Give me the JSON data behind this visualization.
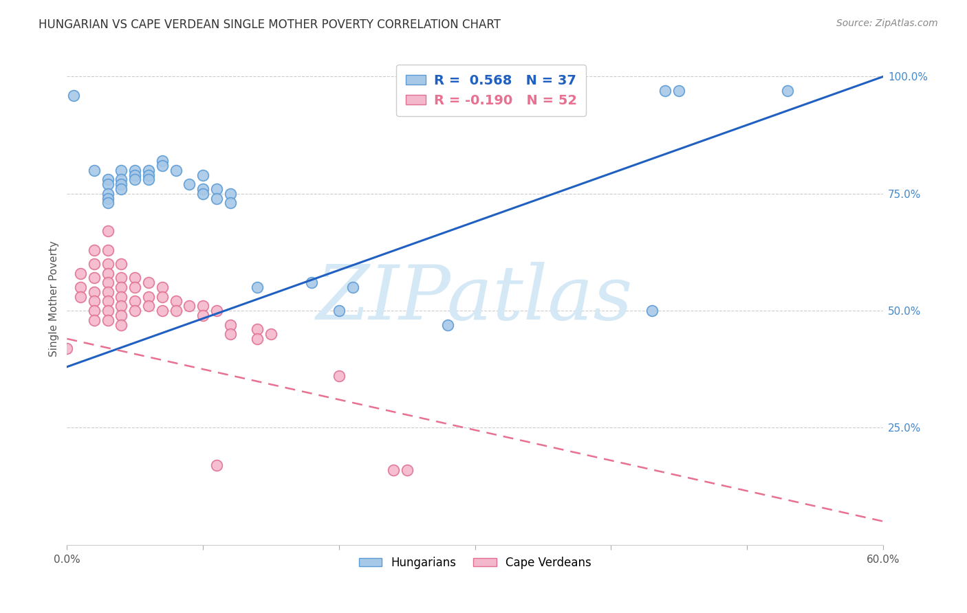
{
  "title": "HUNGARIAN VS CAPE VERDEAN SINGLE MOTHER POVERTY CORRELATION CHART",
  "source": "Source: ZipAtlas.com",
  "ylabel": "Single Mother Poverty",
  "xlim": [
    0.0,
    0.6
  ],
  "ylim": [
    0.0,
    1.05
  ],
  "x_ticks": [
    0.0,
    0.1,
    0.2,
    0.3,
    0.4,
    0.5,
    0.6
  ],
  "x_tick_labels": [
    "0.0%",
    "",
    "",
    "",
    "",
    "",
    "60.0%"
  ],
  "y_ticks_right": [
    0.25,
    0.5,
    0.75,
    1.0
  ],
  "y_tick_labels_right": [
    "25.0%",
    "50.0%",
    "75.0%",
    "100.0%"
  ],
  "hungarian_color": "#a8c8e8",
  "capeverdean_color": "#f4b8cc",
  "hungarian_edge_color": "#5b9bd5",
  "capeverdean_edge_color": "#e07090",
  "hungarian_line_color": "#2060c0",
  "capeverdean_line_color": "#e87090",
  "watermark": "ZIPatlas",
  "watermark_color": "#d5e8f5",
  "background_color": "#ffffff",
  "hungarian_points": [
    [
      0.005,
      0.96
    ],
    [
      0.02,
      0.8
    ],
    [
      0.03,
      0.78
    ],
    [
      0.03,
      0.77
    ],
    [
      0.03,
      0.75
    ],
    [
      0.03,
      0.74
    ],
    [
      0.03,
      0.73
    ],
    [
      0.04,
      0.8
    ],
    [
      0.04,
      0.78
    ],
    [
      0.04,
      0.77
    ],
    [
      0.04,
      0.76
    ],
    [
      0.05,
      0.8
    ],
    [
      0.05,
      0.79
    ],
    [
      0.05,
      0.78
    ],
    [
      0.06,
      0.8
    ],
    [
      0.06,
      0.79
    ],
    [
      0.06,
      0.78
    ],
    [
      0.07,
      0.82
    ],
    [
      0.07,
      0.81
    ],
    [
      0.08,
      0.8
    ],
    [
      0.09,
      0.77
    ],
    [
      0.1,
      0.79
    ],
    [
      0.1,
      0.76
    ],
    [
      0.1,
      0.75
    ],
    [
      0.11,
      0.76
    ],
    [
      0.11,
      0.74
    ],
    [
      0.12,
      0.75
    ],
    [
      0.12,
      0.73
    ],
    [
      0.14,
      0.55
    ],
    [
      0.18,
      0.56
    ],
    [
      0.2,
      0.5
    ],
    [
      0.21,
      0.55
    ],
    [
      0.28,
      0.47
    ],
    [
      0.43,
      0.5
    ],
    [
      0.44,
      0.97
    ],
    [
      0.45,
      0.97
    ],
    [
      0.53,
      0.97
    ]
  ],
  "capeverdean_points": [
    [
      0.0,
      0.42
    ],
    [
      0.01,
      0.58
    ],
    [
      0.01,
      0.55
    ],
    [
      0.01,
      0.53
    ],
    [
      0.02,
      0.63
    ],
    [
      0.02,
      0.6
    ],
    [
      0.02,
      0.57
    ],
    [
      0.02,
      0.54
    ],
    [
      0.02,
      0.52
    ],
    [
      0.02,
      0.5
    ],
    [
      0.02,
      0.48
    ],
    [
      0.03,
      0.67
    ],
    [
      0.03,
      0.63
    ],
    [
      0.03,
      0.6
    ],
    [
      0.03,
      0.58
    ],
    [
      0.03,
      0.56
    ],
    [
      0.03,
      0.54
    ],
    [
      0.03,
      0.52
    ],
    [
      0.03,
      0.5
    ],
    [
      0.03,
      0.48
    ],
    [
      0.04,
      0.6
    ],
    [
      0.04,
      0.57
    ],
    [
      0.04,
      0.55
    ],
    [
      0.04,
      0.53
    ],
    [
      0.04,
      0.51
    ],
    [
      0.04,
      0.49
    ],
    [
      0.04,
      0.47
    ],
    [
      0.05,
      0.57
    ],
    [
      0.05,
      0.55
    ],
    [
      0.05,
      0.52
    ],
    [
      0.05,
      0.5
    ],
    [
      0.06,
      0.56
    ],
    [
      0.06,
      0.53
    ],
    [
      0.06,
      0.51
    ],
    [
      0.07,
      0.55
    ],
    [
      0.07,
      0.53
    ],
    [
      0.07,
      0.5
    ],
    [
      0.08,
      0.52
    ],
    [
      0.08,
      0.5
    ],
    [
      0.09,
      0.51
    ],
    [
      0.1,
      0.51
    ],
    [
      0.1,
      0.49
    ],
    [
      0.11,
      0.5
    ],
    [
      0.12,
      0.47
    ],
    [
      0.12,
      0.45
    ],
    [
      0.14,
      0.46
    ],
    [
      0.14,
      0.44
    ],
    [
      0.15,
      0.45
    ],
    [
      0.2,
      0.36
    ],
    [
      0.24,
      0.16
    ],
    [
      0.25,
      0.16
    ],
    [
      0.11,
      0.17
    ]
  ],
  "hungarian_trendline": [
    [
      0.0,
      0.38
    ],
    [
      0.6,
      1.0
    ]
  ],
  "capeverdean_trendline": [
    [
      0.0,
      0.44
    ],
    [
      0.6,
      0.05
    ]
  ]
}
